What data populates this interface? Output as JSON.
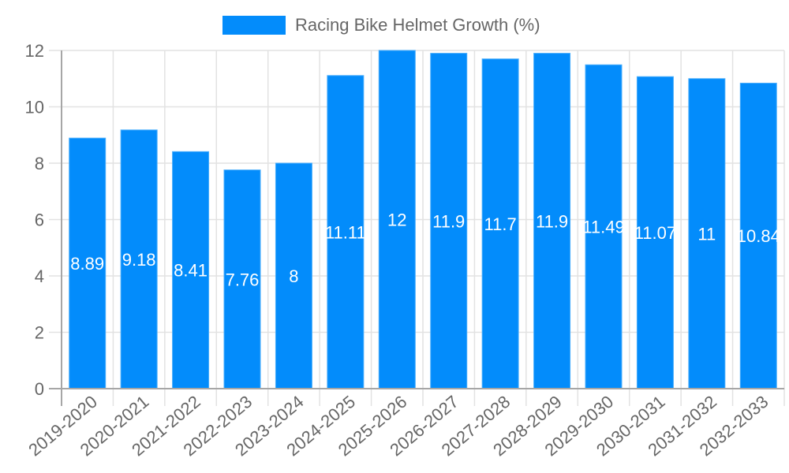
{
  "chart_data": {
    "type": "bar",
    "title": "",
    "xlabel": "",
    "ylabel": "",
    "legend": [
      "Racing Bike Helmet Growth (%)"
    ],
    "legend_position": "top",
    "grid": true,
    "ylim": [
      0,
      12
    ],
    "yticks": [
      0,
      2,
      4,
      6,
      8,
      10,
      12
    ],
    "categories": [
      "2019-2020",
      "2020-2021",
      "2021-2022",
      "2022-2023",
      "2023-2024",
      "2024-2025",
      "2025-2026",
      "2026-2027",
      "2027-2028",
      "2028-2029",
      "2029-2030",
      "2030-2031",
      "2031-2032",
      "2032-2033"
    ],
    "series": [
      {
        "name": "Racing Bike Helmet Growth (%)",
        "color": "#038cfb",
        "values": [
          8.89,
          9.18,
          8.41,
          7.76,
          8,
          11.11,
          12,
          11.9,
          11.7,
          11.9,
          11.49,
          11.07,
          11,
          10.84
        ],
        "data_labels": [
          "8.89",
          "9.18",
          "8.41",
          "7.76",
          "8",
          "11.11",
          "12",
          "11.9",
          "11.7",
          "11.9",
          "11.49",
          "11.07",
          "11",
          "10.84"
        ]
      }
    ]
  },
  "legend": {
    "label": "Racing Bike Helmet Growth (%)",
    "color": "#038cfb"
  }
}
